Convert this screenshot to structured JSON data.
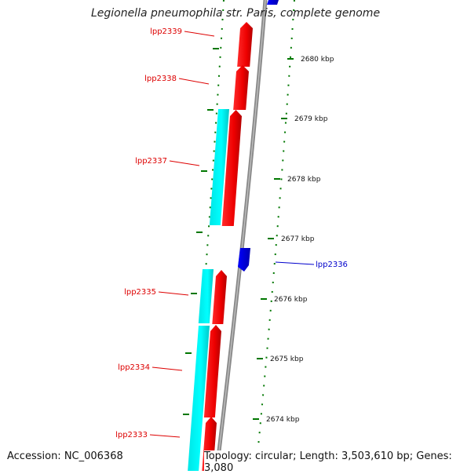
{
  "header": {
    "title": "Legionella pneumophila str. Paris, complete genome"
  },
  "footer": {
    "accession": "Accession: NC_006368",
    "topology": "Topology: circular; Length: 3,503,610 bp; Genes: 3,080"
  },
  "colors": {
    "forward_gene": "#ff0000",
    "reverse_gene": "#00ffff",
    "highlight_gene": "#0000ff",
    "backbone": "#888888",
    "ticks": "#007700",
    "forward_label": "#dd0000",
    "highlight_label": "#0000cc"
  },
  "scale_labels": [
    "2680 kbp",
    "2679 kbp",
    "2678 kbp",
    "2677 kbp",
    "2676 kbp",
    "2675 kbp",
    "2674 kbp"
  ],
  "gene_labels": [
    {
      "name": "lpp2339",
      "color": "red"
    },
    {
      "name": "lpp2338",
      "color": "red"
    },
    {
      "name": "lpp2337",
      "color": "red"
    },
    {
      "name": "lpp2335",
      "color": "red"
    },
    {
      "name": "lpp2334",
      "color": "red"
    },
    {
      "name": "lpp2333",
      "color": "red"
    },
    {
      "name": "lpp2336",
      "color": "blue"
    }
  ]
}
